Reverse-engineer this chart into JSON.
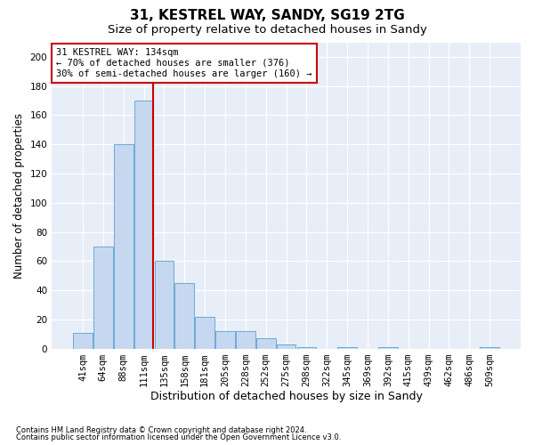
{
  "title1": "31, KESTREL WAY, SANDY, SG19 2TG",
  "title2": "Size of property relative to detached houses in Sandy",
  "xlabel": "Distribution of detached houses by size in Sandy",
  "ylabel": "Number of detached properties",
  "footnote1": "Contains HM Land Registry data © Crown copyright and database right 2024.",
  "footnote2": "Contains public sector information licensed under the Open Government Licence v3.0.",
  "bar_labels": [
    "41sqm",
    "64sqm",
    "88sqm",
    "111sqm",
    "135sqm",
    "158sqm",
    "181sqm",
    "205sqm",
    "228sqm",
    "252sqm",
    "275sqm",
    "298sqm",
    "322sqm",
    "345sqm",
    "369sqm",
    "392sqm",
    "415sqm",
    "439sqm",
    "462sqm",
    "486sqm",
    "509sqm"
  ],
  "bar_values": [
    11,
    70,
    140,
    170,
    60,
    45,
    22,
    12,
    12,
    7,
    3,
    1,
    0,
    1,
    0,
    1,
    0,
    0,
    0,
    0,
    1
  ],
  "bar_color": "#c5d8f0",
  "bar_edge_color": "#6aaad4",
  "vline_index": 3,
  "vline_color": "#cc0000",
  "annotation_text": "31 KESTREL WAY: 134sqm\n← 70% of detached houses are smaller (376)\n30% of semi-detached houses are larger (160) →",
  "annotation_box_color": "#ffffff",
  "annotation_box_edge": "#cc0000",
  "ylim": [
    0,
    210
  ],
  "yticks": [
    0,
    20,
    40,
    60,
    80,
    100,
    120,
    140,
    160,
    180,
    200
  ],
  "bg_color": "#e8eef8",
  "grid_color": "#ffffff",
  "title1_fontsize": 11,
  "title2_fontsize": 9.5,
  "xlabel_fontsize": 9,
  "ylabel_fontsize": 8.5,
  "tick_fontsize": 7.5,
  "annot_fontsize": 7.5
}
